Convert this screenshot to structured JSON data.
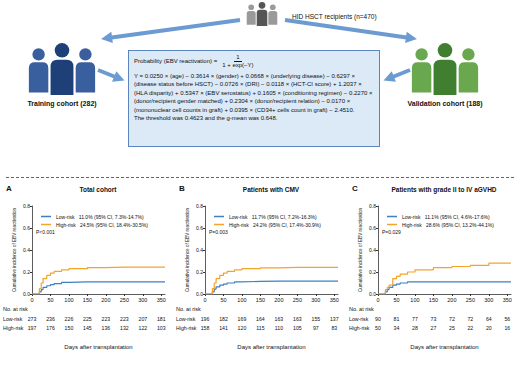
{
  "diagram": {
    "recipients": "HID HSCT recipients (n=470)",
    "training": "Training cohort (282)",
    "validation": "Validation cohort (188)",
    "formula": {
      "lhs": "Probability (EBV reactivation) =",
      "numerator": "1",
      "denominator": "1 + exp(−Y)",
      "equation": "Y = 0.0250 × (age) − 0.3614 × (gender) + 0.0668 × (underlying disease) − 0.6297 × (disease status before HSCT) − 0.0726 × (DRI) − 0.0118 × (HCT-CI score) + 1.2037 × (HLA disparity) + 0.5347 × (EBV serostatus) + 0.1605 × (conditioning regimen) − 0.2270 × (donor/recipient gender matched) + 0.2304 × (donor/recipient relation) − 0.0170 × (mononuclear cell counts in graft) + 0.0395 × (CD34+ cells count in graft) − 2.4510.",
      "threshold": "The threshold was 0.4623 and the g-mean was 0.648."
    }
  },
  "chart_data": [
    {
      "type": "line",
      "panel": "A",
      "title": "Total cohort",
      "x_label": "Days after transplantation",
      "y_label": "Cumulative incidence of EBV reactivation",
      "line_style": "step",
      "x": [
        0,
        15,
        20,
        25,
        30,
        40,
        50,
        60,
        80,
        100,
        150,
        200,
        250,
        300,
        360
      ],
      "xlim": [
        0,
        360
      ],
      "xticks": [
        0,
        50,
        100,
        150,
        200,
        250,
        300,
        350
      ],
      "ylim": [
        0,
        0.8
      ],
      "yticks": [
        {
          "value": 0,
          "label": "0.0"
        },
        {
          "value": 0.2,
          "label": "0.2"
        },
        {
          "value": 0.4,
          "label": "0.4"
        },
        {
          "value": 0.6,
          "label": "0.6"
        },
        {
          "value": 0.8,
          "label": "0.8"
        }
      ],
      "series": [
        {
          "name": "Low-risk",
          "color": "#3f7fc4",
          "estimate": "11.0% (95% CI, 7.3%-14.7%)",
          "values": [
            0,
            0,
            0.02,
            0.04,
            0.06,
            0.075,
            0.085,
            0.095,
            0.105,
            0.11,
            0.11,
            0.11,
            0.11,
            0.11,
            0.11
          ]
        },
        {
          "name": "High-risk",
          "color": "#f2a52b",
          "estimate": "24.5% (95% CI, 18.4%-30.5%)",
          "values": [
            0,
            0,
            0.05,
            0.1,
            0.14,
            0.17,
            0.19,
            0.205,
            0.22,
            0.23,
            0.24,
            0.245,
            0.245,
            0.245,
            0.245
          ]
        }
      ],
      "annotation": "P<0.001",
      "at_risk": {
        "title": "No. at risk",
        "rows": [
          {
            "name": "Low-risk",
            "values": [
              273,
              236,
              226,
              225,
              223,
              223,
              207,
              181
            ]
          },
          {
            "name": "High-risk",
            "values": [
              197,
              176,
              150,
              145,
              136,
              132,
              122,
              103
            ]
          }
        ]
      }
    },
    {
      "type": "line",
      "panel": "B",
      "title": "Patients with CMV",
      "x_label": "Days after transplantation",
      "y_label": "Cumulative incidence of EBV reactivation",
      "line_style": "step",
      "x": [
        0,
        15,
        20,
        25,
        30,
        40,
        50,
        60,
        80,
        100,
        150,
        200,
        250,
        300,
        360
      ],
      "xlim": [
        0,
        360
      ],
      "xticks": [
        0,
        50,
        100,
        150,
        200,
        250,
        300,
        350
      ],
      "ylim": [
        0,
        0.8
      ],
      "yticks": [
        {
          "value": 0,
          "label": "0.0"
        },
        {
          "value": 0.2,
          "label": "0.2"
        },
        {
          "value": 0.4,
          "label": "0.4"
        },
        {
          "value": 0.6,
          "label": "0.6"
        },
        {
          "value": 0.8,
          "label": "0.8"
        }
      ],
      "series": [
        {
          "name": "Low-risk",
          "color": "#3f7fc4",
          "estimate": "11.7% (95% CI, 7.2%-16.3%)",
          "values": [
            0,
            0,
            0.02,
            0.045,
            0.065,
            0.08,
            0.09,
            0.1,
            0.11,
            0.115,
            0.117,
            0.117,
            0.117,
            0.117,
            0.117
          ]
        },
        {
          "name": "High-risk",
          "color": "#f2a52b",
          "estimate": "24.2% (95% CI, 17.4%-30.9%)",
          "values": [
            0,
            0,
            0.05,
            0.1,
            0.14,
            0.17,
            0.19,
            0.205,
            0.22,
            0.23,
            0.238,
            0.242,
            0.242,
            0.242,
            0.242
          ]
        }
      ],
      "annotation": "P=0.003",
      "at_risk": {
        "title": "No. at risk",
        "rows": [
          {
            "name": "Low-risk",
            "values": [
              196,
              182,
              169,
              164,
              163,
              163,
              155,
              137
            ]
          },
          {
            "name": "High-risk",
            "values": [
              158,
              141,
              120,
              115,
              110,
              105,
              97,
              83
            ]
          }
        ]
      }
    },
    {
      "type": "line",
      "panel": "C",
      "title": "Patients with grade II to IV aGVHD",
      "x_label": "Days after transplantation",
      "y_label": "Cumulative incidence of EBV reactivation",
      "line_style": "step",
      "x": [
        0,
        15,
        20,
        25,
        30,
        40,
        50,
        60,
        80,
        100,
        150,
        200,
        250,
        300,
        360
      ],
      "xlim": [
        0,
        360
      ],
      "xticks": [
        0,
        50,
        100,
        150,
        200,
        250,
        300,
        350
      ],
      "ylim": [
        0,
        0.8
      ],
      "yticks": [
        {
          "value": 0,
          "label": "0.0"
        },
        {
          "value": 0.2,
          "label": "0.2"
        },
        {
          "value": 0.4,
          "label": "0.4"
        },
        {
          "value": 0.6,
          "label": "0.6"
        },
        {
          "value": 0.8,
          "label": "0.8"
        }
      ],
      "series": [
        {
          "name": "Low-risk",
          "color": "#3f7fc4",
          "estimate": "11.1% (95% CI, 4.6%-17.6%)",
          "values": [
            0,
            0,
            0.02,
            0.04,
            0.06,
            0.08,
            0.09,
            0.1,
            0.111,
            0.111,
            0.111,
            0.111,
            0.111,
            0.111,
            0.111
          ]
        },
        {
          "name": "High-risk",
          "color": "#f2a52b",
          "estimate": "28.6% (95% CI, 13.2%-44.1%)",
          "values": [
            0,
            0,
            0.04,
            0.06,
            0.08,
            0.14,
            0.16,
            0.18,
            0.2,
            0.22,
            0.24,
            0.25,
            0.26,
            0.28,
            0.286
          ]
        }
      ],
      "annotation": "P=0.029",
      "at_risk": {
        "title": "No. at risk",
        "rows": [
          {
            "name": "Low-risk",
            "values": [
              90,
              81,
              77,
              73,
              72,
              72,
              64,
              56
            ]
          },
          {
            "name": "High-risk",
            "values": [
              50,
              34,
              28,
              27,
              25,
              22,
              20,
              16
            ]
          }
        ]
      }
    }
  ]
}
